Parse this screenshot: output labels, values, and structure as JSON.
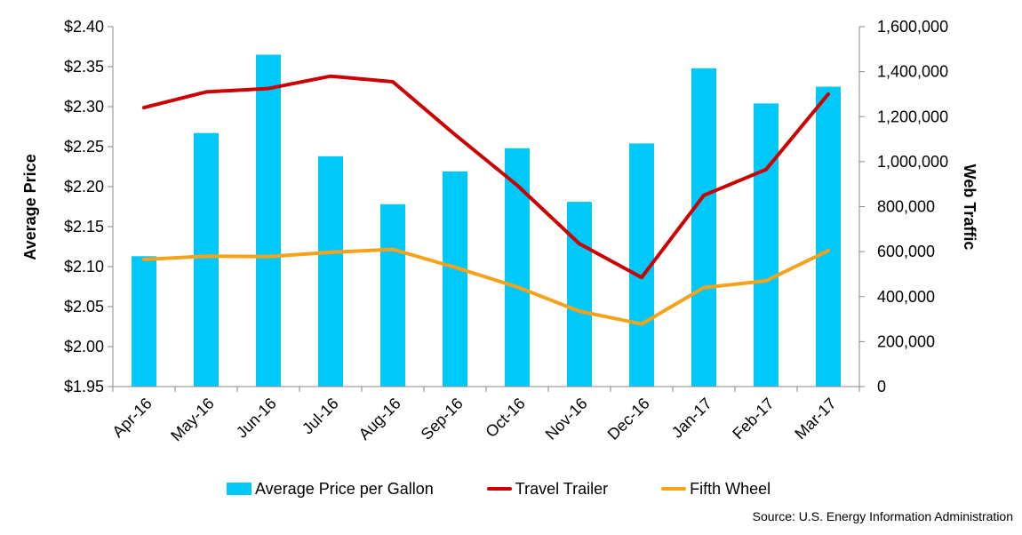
{
  "chart_data": {
    "type": "bar",
    "categories": [
      "Apr-16",
      "May-16",
      "Jun-16",
      "Jul-16",
      "Aug-16",
      "Sep-16",
      "Oct-16",
      "Nov-16",
      "Dec-16",
      "Jan-17",
      "Feb-17",
      "Mar-17"
    ],
    "series": [
      {
        "name": "Average Price per Gallon",
        "type": "bar",
        "axis": "left",
        "color": "#00c8f8",
        "values": [
          2.113,
          2.267,
          2.365,
          2.238,
          2.178,
          2.219,
          2.248,
          2.181,
          2.254,
          2.348,
          2.304,
          2.325
        ]
      },
      {
        "name": "Travel Trailer",
        "type": "line",
        "axis": "right",
        "color": "#cc0000",
        "values": [
          1240000,
          1310000,
          1325000,
          1380000,
          1355000,
          1120000,
          895000,
          635000,
          485000,
          850000,
          965000,
          1300000
        ]
      },
      {
        "name": "Fifth Wheel",
        "type": "line",
        "axis": "right",
        "color": "#f7a21b",
        "values": [
          565000,
          580000,
          578000,
          597000,
          610000,
          530000,
          443000,
          335000,
          278000,
          440000,
          470000,
          605000
        ]
      }
    ],
    "ylabel": "Average Price",
    "y2label": "Web Traffic",
    "ylim": [
      1.95,
      2.4
    ],
    "y2lim": [
      0,
      1600000
    ],
    "yticks": [
      "$1.95",
      "$2.00",
      "$2.05",
      "$2.10",
      "$2.15",
      "$2.20",
      "$2.25",
      "$2.30",
      "$2.35",
      "$2.40"
    ],
    "y2ticks": [
      "0",
      "200,000",
      "400,000",
      "600,000",
      "800,000",
      "1,000,000",
      "1,200,000",
      "1,400,000",
      "1,600,000"
    ],
    "grid": false,
    "legend": "bottom"
  },
  "source": "Source: U.S. Energy Information Administration"
}
